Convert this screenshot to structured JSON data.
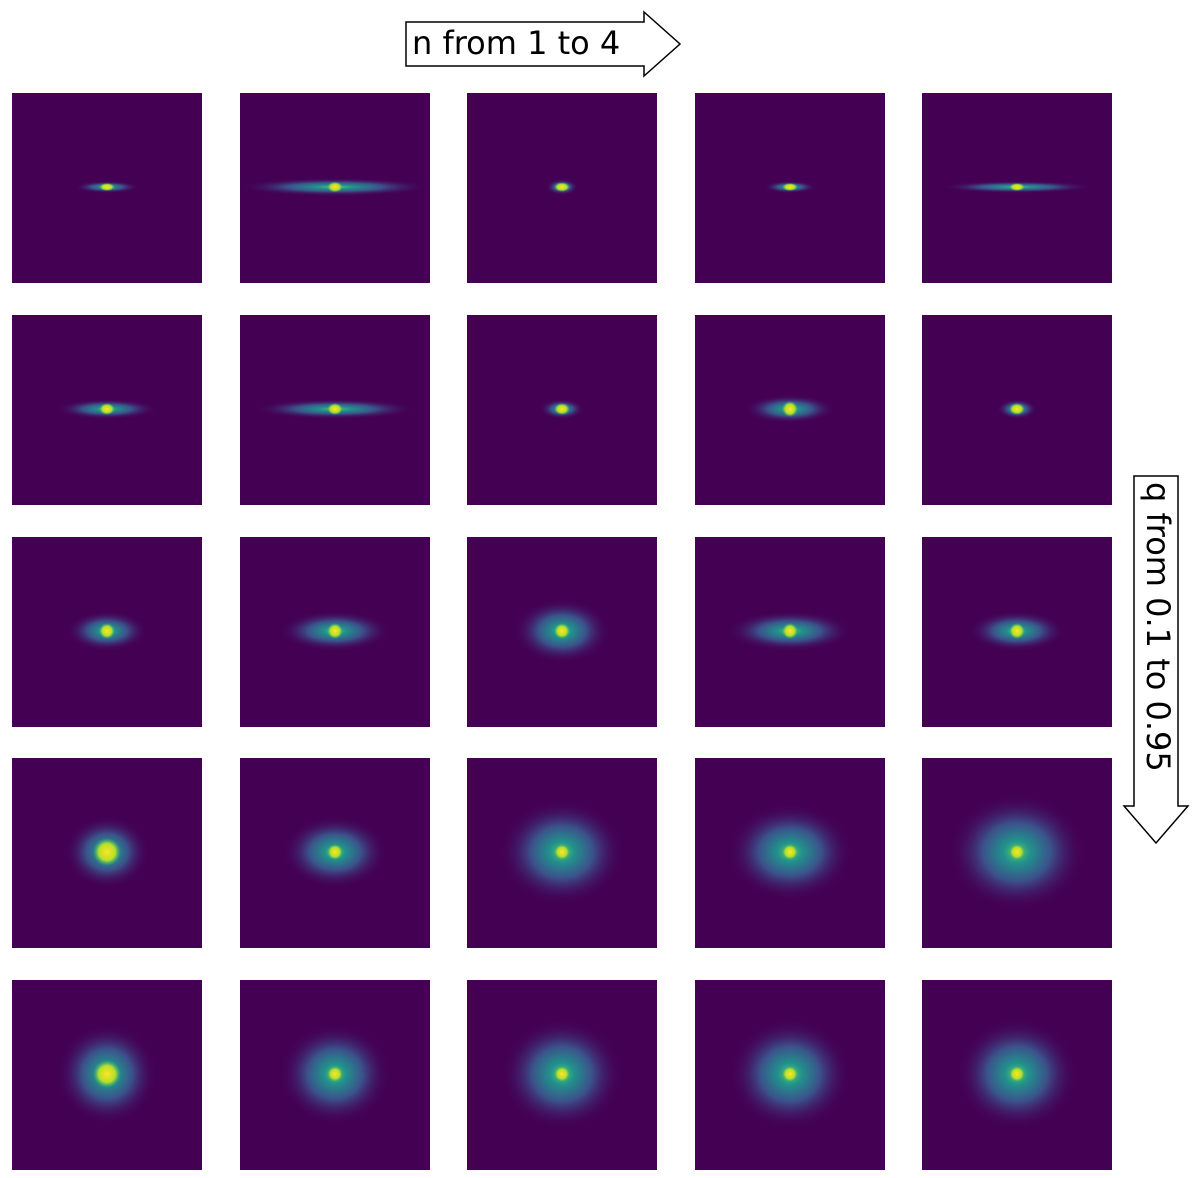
{
  "header": {
    "column_label": "n from 1 to 4"
  },
  "side": {
    "row_label": "q from 0.1 to 0.95"
  }
}
